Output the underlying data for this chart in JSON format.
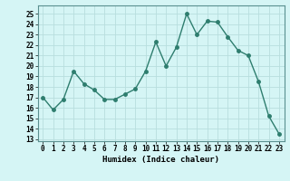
{
  "x": [
    0,
    1,
    2,
    3,
    4,
    5,
    6,
    7,
    8,
    9,
    10,
    11,
    12,
    13,
    14,
    15,
    16,
    17,
    18,
    19,
    20,
    21,
    22,
    23
  ],
  "y": [
    17,
    15.8,
    16.8,
    19.5,
    18.3,
    17.7,
    16.8,
    16.8,
    17.3,
    17.8,
    19.5,
    22.3,
    20.0,
    21.8,
    25.0,
    23.0,
    24.3,
    24.2,
    22.8,
    21.5,
    21.0,
    18.5,
    15.2,
    13.5
  ],
  "line_color": "#2E7D6E",
  "marker": "o",
  "marker_size": 2.5,
  "bg_color": "#D5F5F5",
  "grid_color": "#B8DEDE",
  "xlabel": "Humidex (Indice chaleur)",
  "ylabel_ticks": [
    13,
    14,
    15,
    16,
    17,
    18,
    19,
    20,
    21,
    22,
    23,
    24,
    25
  ],
  "ylim": [
    12.8,
    25.8
  ],
  "xlim": [
    -0.5,
    23.5
  ],
  "tick_fontsize": 5.5,
  "label_fontsize": 6.5
}
